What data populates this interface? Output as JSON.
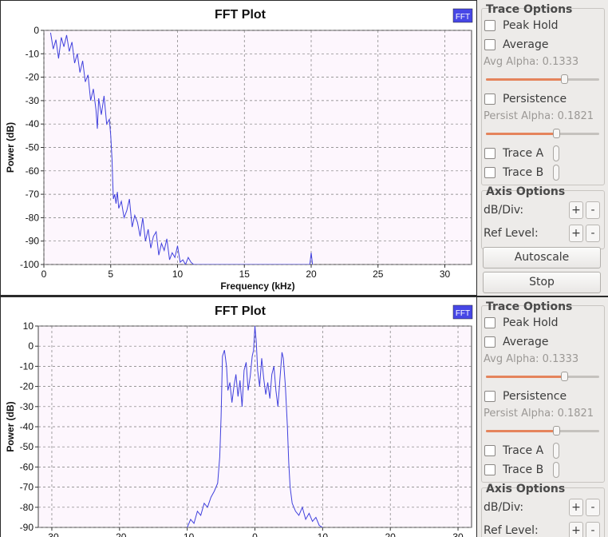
{
  "top_plot": {
    "title": "FFT Plot",
    "legend": "FFT",
    "colors": {
      "trace": "#4040dd",
      "background": "#fdf6fd",
      "grid": "#7a7a7a",
      "legend_bg": "#4747e6"
    },
    "chart_data": {
      "type": "line",
      "title": "FFT Plot",
      "xlabel": "Frequency (kHz)",
      "ylabel": "Power (dB)",
      "xlim": [
        0,
        32
      ],
      "ylim": [
        -100,
        0
      ],
      "xticks": [
        "0",
        "5",
        "10",
        "15",
        "20",
        "25",
        "30"
      ],
      "yticks": [
        "0",
        "-10",
        "-20",
        "-30",
        "-40",
        "-50",
        "-60",
        "-70",
        "-80",
        "-90",
        "-100"
      ],
      "grid": true,
      "legend_placement": "top-right",
      "series": [
        {
          "name": "FFT",
          "x": [
            0.5,
            0.7,
            0.9,
            1.1,
            1.3,
            1.5,
            1.7,
            1.9,
            2.1,
            2.3,
            2.5,
            2.7,
            2.9,
            3.1,
            3.3,
            3.5,
            3.7,
            3.9,
            4.0,
            4.1,
            4.3,
            4.5,
            4.7,
            4.9,
            5.0,
            5.1,
            5.15,
            5.2,
            5.3,
            5.4,
            5.5,
            5.6,
            5.8,
            6.0,
            6.2,
            6.4,
            6.6,
            6.8,
            7.0,
            7.2,
            7.4,
            7.6,
            7.8,
            8.0,
            8.2,
            8.4,
            8.6,
            8.8,
            9.0,
            9.2,
            9.4,
            9.6,
            9.8,
            10.0,
            10.2,
            10.4,
            10.6,
            10.8,
            11.0,
            11.2,
            19.9,
            20.0,
            20.1
          ],
          "y": [
            -1,
            -8,
            -4,
            -12,
            -3,
            -7,
            -2,
            -9,
            -5,
            -14,
            -10,
            -18,
            -13,
            -22,
            -19,
            -30,
            -25,
            -34,
            -42,
            -29,
            -36,
            -28,
            -40,
            -38,
            -45,
            -55,
            -65,
            -72,
            -70,
            -74,
            -69,
            -76,
            -73,
            -80,
            -77,
            -72,
            -84,
            -79,
            -82,
            -88,
            -80,
            -90,
            -85,
            -93,
            -88,
            -86,
            -96,
            -91,
            -94,
            -89,
            -98,
            -95,
            -97,
            -92,
            -99,
            -98,
            -100,
            -97,
            -99,
            -100,
            -100,
            -95,
            -100
          ]
        }
      ]
    }
  },
  "bottom_plot": {
    "title": "FFT Plot",
    "legend": "FFT",
    "colors": {
      "trace": "#4040dd",
      "background": "#fdf6fd",
      "grid": "#7a7a7a",
      "legend_bg": "#4747e6"
    },
    "chart_data": {
      "type": "line",
      "title": "FFT Plot",
      "ylabel": "Power (dB)",
      "xlim": [
        -32,
        32
      ],
      "ylim": [
        -90,
        10
      ],
      "xticks": [
        "-30",
        "-20",
        "-10",
        "0",
        "10",
        "20",
        "30"
      ],
      "yticks": [
        "10",
        "0",
        "-10",
        "-20",
        "-30",
        "-40",
        "-50",
        "-60",
        "-70",
        "-80",
        "-90"
      ],
      "grid": true,
      "legend_placement": "top-right",
      "series": [
        {
          "name": "FFT",
          "x": [
            -10.0,
            -9.5,
            -9.0,
            -8.5,
            -8.0,
            -7.5,
            -7.0,
            -6.5,
            -6.0,
            -5.5,
            -5.2,
            -5.0,
            -4.8,
            -4.5,
            -4.2,
            -4.0,
            -3.7,
            -3.4,
            -3.1,
            -2.8,
            -2.5,
            -2.2,
            -1.9,
            -1.6,
            -1.3,
            -1.0,
            -0.7,
            -0.4,
            -0.2,
            0.0,
            0.2,
            0.4,
            0.7,
            1.0,
            1.3,
            1.6,
            1.9,
            2.2,
            2.5,
            2.8,
            3.1,
            3.4,
            3.7,
            4.0,
            4.2,
            4.5,
            4.8,
            5.0,
            5.2,
            5.5,
            6.0,
            6.5,
            7.0,
            7.5,
            8.0,
            8.5,
            9.0,
            9.5,
            10.0
          ],
          "y": [
            -90,
            -86,
            -88,
            -82,
            -84,
            -78,
            -80,
            -75,
            -72,
            -68,
            -55,
            -35,
            -5,
            -2,
            -10,
            -22,
            -18,
            -28,
            -20,
            -14,
            -25,
            -17,
            -30,
            -12,
            -8,
            -22,
            -15,
            -5,
            -2,
            10,
            2,
            -12,
            -20,
            -6,
            -16,
            -24,
            -18,
            -26,
            -14,
            -10,
            -22,
            -30,
            -16,
            -3,
            -6,
            -20,
            -40,
            -58,
            -70,
            -78,
            -82,
            -84,
            -80,
            -86,
            -83,
            -87,
            -85,
            -89,
            -90
          ]
        }
      ]
    }
  },
  "trace_options": {
    "title": "Trace Options",
    "peak_hold": "Peak Hold",
    "average": "Average",
    "avg_alpha": "Avg Alpha: 0.1333",
    "avg_alpha_value": 0.1333,
    "persistence": "Persistence",
    "persist_alpha": "Persist Alpha: 0.1821",
    "persist_alpha_value": 0.1821,
    "trace_a": "Trace A",
    "trace_b": "Trace B"
  },
  "axis_options": {
    "title": "Axis Options",
    "db_div": "dB/Div:",
    "ref_level": "Ref Level:",
    "plus": "+",
    "minus": "-",
    "autoscale": "Autoscale",
    "stop": "Stop"
  }
}
